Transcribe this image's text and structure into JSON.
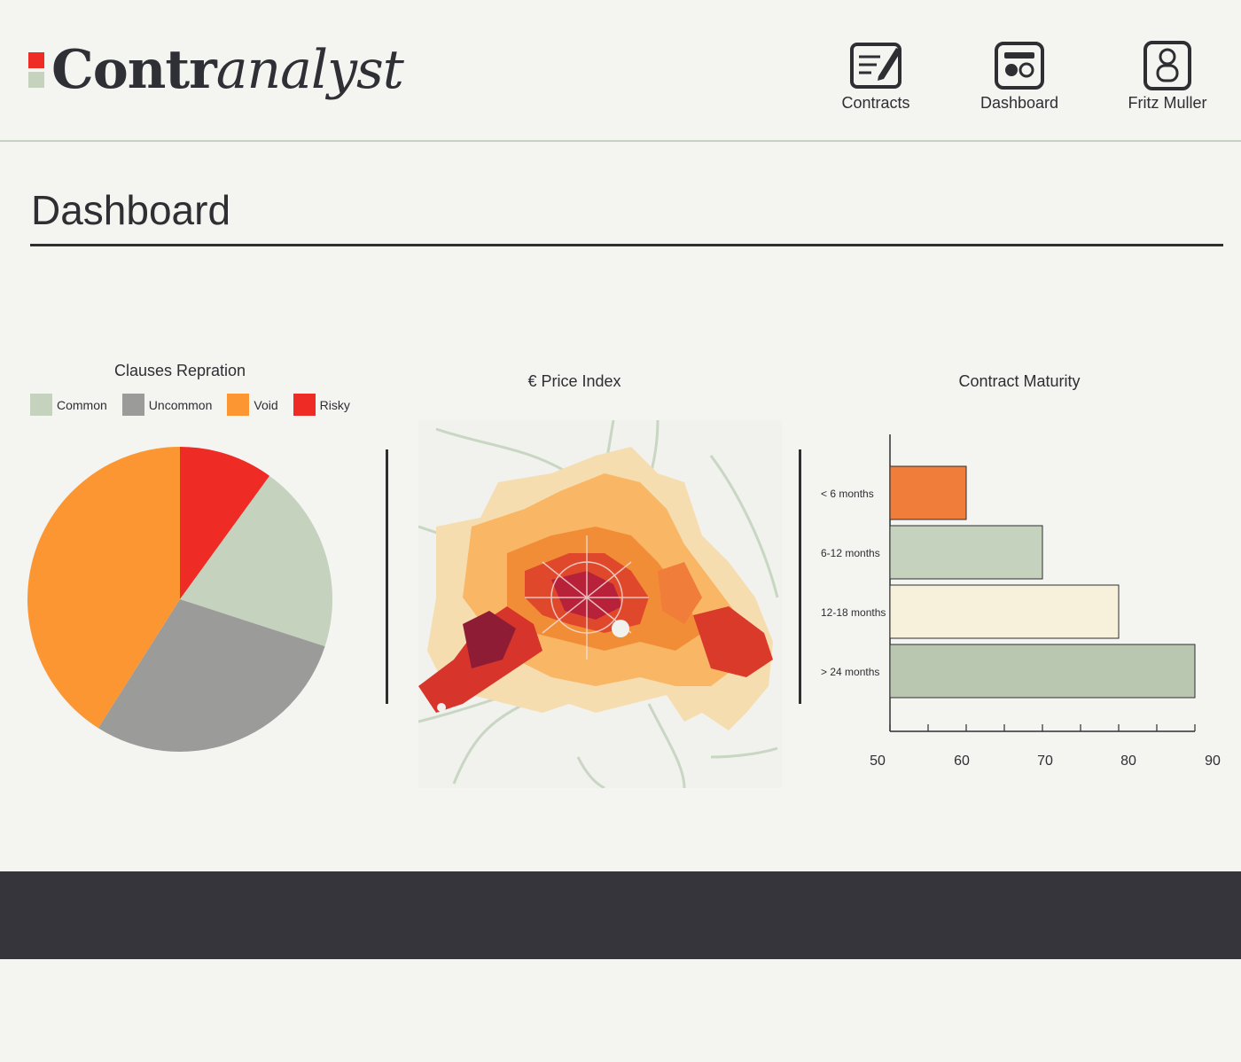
{
  "app": {
    "logo_bold": "Contr",
    "logo_italic": "analyst"
  },
  "nav": [
    {
      "label": "Contracts",
      "icon": "contract-edit-icon"
    },
    {
      "label": "Dashboard",
      "icon": "dashboard-icon"
    },
    {
      "label": "Fritz Muller",
      "icon": "user-icon"
    }
  ],
  "page": {
    "title": "Dashboard"
  },
  "colors": {
    "common": "#c5d2bd",
    "uncommon": "#9b9b9a",
    "void": "#fb9633",
    "risky": "#ef2b26",
    "dark": "#36353b",
    "bar_lt6": "#f07d3a",
    "bar_6_12": "#c5d2bd",
    "bar_12_18": "#f7f0da",
    "bar_gt24": "#b9c7b1"
  },
  "pie": {
    "title": "Clauses Repration",
    "legend": [
      "Common",
      "Uncommon",
      "Void",
      "Risky"
    ]
  },
  "map": {
    "title": "€ Price Index"
  },
  "bar": {
    "title": "Contract Maturity"
  },
  "chart_data": [
    {
      "type": "pie",
      "title": "Clauses Repration",
      "labels": [
        "Risky",
        "Common",
        "Uncommon",
        "Void"
      ],
      "values": [
        10,
        20,
        29,
        41
      ]
    },
    {
      "type": "bar",
      "orientation": "horizontal",
      "title": "Contract Maturity",
      "categories": [
        "< 6 months",
        "6-12 months",
        "12-18 months",
        "> 24 months"
      ],
      "values": [
        60,
        70,
        80,
        90
      ],
      "xlim": [
        50,
        90
      ],
      "xticks": [
        "50",
        "60",
        "70",
        "80",
        "90"
      ]
    }
  ]
}
